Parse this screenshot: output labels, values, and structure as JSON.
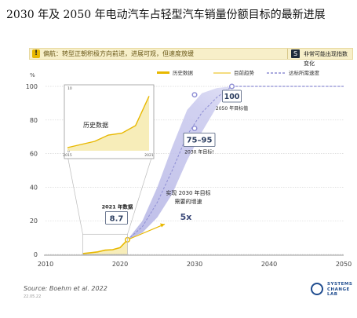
{
  "title": "2030 年及 2050 年电动汽车占轻型汽车销量份额目标的最新进展",
  "status_bar": {
    "warning": "!",
    "text": "偏航：转型正朝积极方向前进，进展可观，但速度放缓",
    "right_mark": "S",
    "right_label": "非常可能出现指数变化"
  },
  "chart_data": {
    "type": "line",
    "title": "",
    "ylabel": "%",
    "xlabel": "",
    "xlim": [
      2010,
      2050
    ],
    "ylim": [
      0,
      100
    ],
    "x_ticks": [
      2010,
      2020,
      2030,
      2040,
      2050
    ],
    "y_ticks": [
      0,
      20,
      40,
      60,
      80,
      100
    ],
    "grid": true,
    "legend_position": "top",
    "legend": [
      {
        "key": "historical",
        "label": "历史数据",
        "color": "#e8b800"
      },
      {
        "key": "trend",
        "label": "目前趋势",
        "color": "#e8b800"
      },
      {
        "key": "required",
        "label": "达标所需速度",
        "color": "#8e8ed4"
      }
    ],
    "series": [
      {
        "name": "历史数据",
        "x": [
          2015,
          2016,
          2017,
          2018,
          2019,
          2020,
          2021
        ],
        "values": [
          0.5,
          1.0,
          1.5,
          2.5,
          2.8,
          4.0,
          8.7
        ]
      },
      {
        "name": "目前趋势",
        "x": [
          2021,
          2026
        ],
        "values": [
          8.7,
          18
        ]
      },
      {
        "name": "达标所需速度",
        "x": [
          2021,
          2023,
          2025,
          2027,
          2029,
          2031,
          2033,
          2035,
          2040,
          2050
        ],
        "lower": [
          8.7,
          13,
          22,
          36,
          56,
          73,
          88,
          100,
          100,
          100
        ],
        "upper": [
          8.7,
          20,
          40,
          64,
          86,
          96,
          99,
          100,
          100,
          100
        ]
      }
    ],
    "annotations": [
      {
        "text": "2021 年数据",
        "value": "8.7",
        "x": 2021,
        "y": 8.7
      },
      {
        "text": "2030 年目标!",
        "value": "75–95",
        "x": 2030,
        "y": 75
      },
      {
        "text": "2050 年目标值",
        "value": "100",
        "x": 2035,
        "y": 100
      },
      {
        "text": "实现 2030 年目标需要的增速",
        "value": "5x"
      }
    ],
    "inset": {
      "title": "历史数据",
      "x_ticks": [
        2015,
        2021
      ],
      "y_ticks": [
        0,
        10
      ],
      "ylim": [
        0,
        10
      ],
      "x": [
        2015,
        2016,
        2017,
        2018,
        2019,
        2020,
        2021
      ],
      "values": [
        0.5,
        1.0,
        1.5,
        2.5,
        2.8,
        4.0,
        8.7
      ]
    }
  },
  "footer": {
    "source_label": "Source:",
    "source_text": "Boehm et al. 2022",
    "date": "22.05.22",
    "logo_lines": [
      "SYSTEMS",
      "CHANGE",
      "LAB"
    ]
  }
}
